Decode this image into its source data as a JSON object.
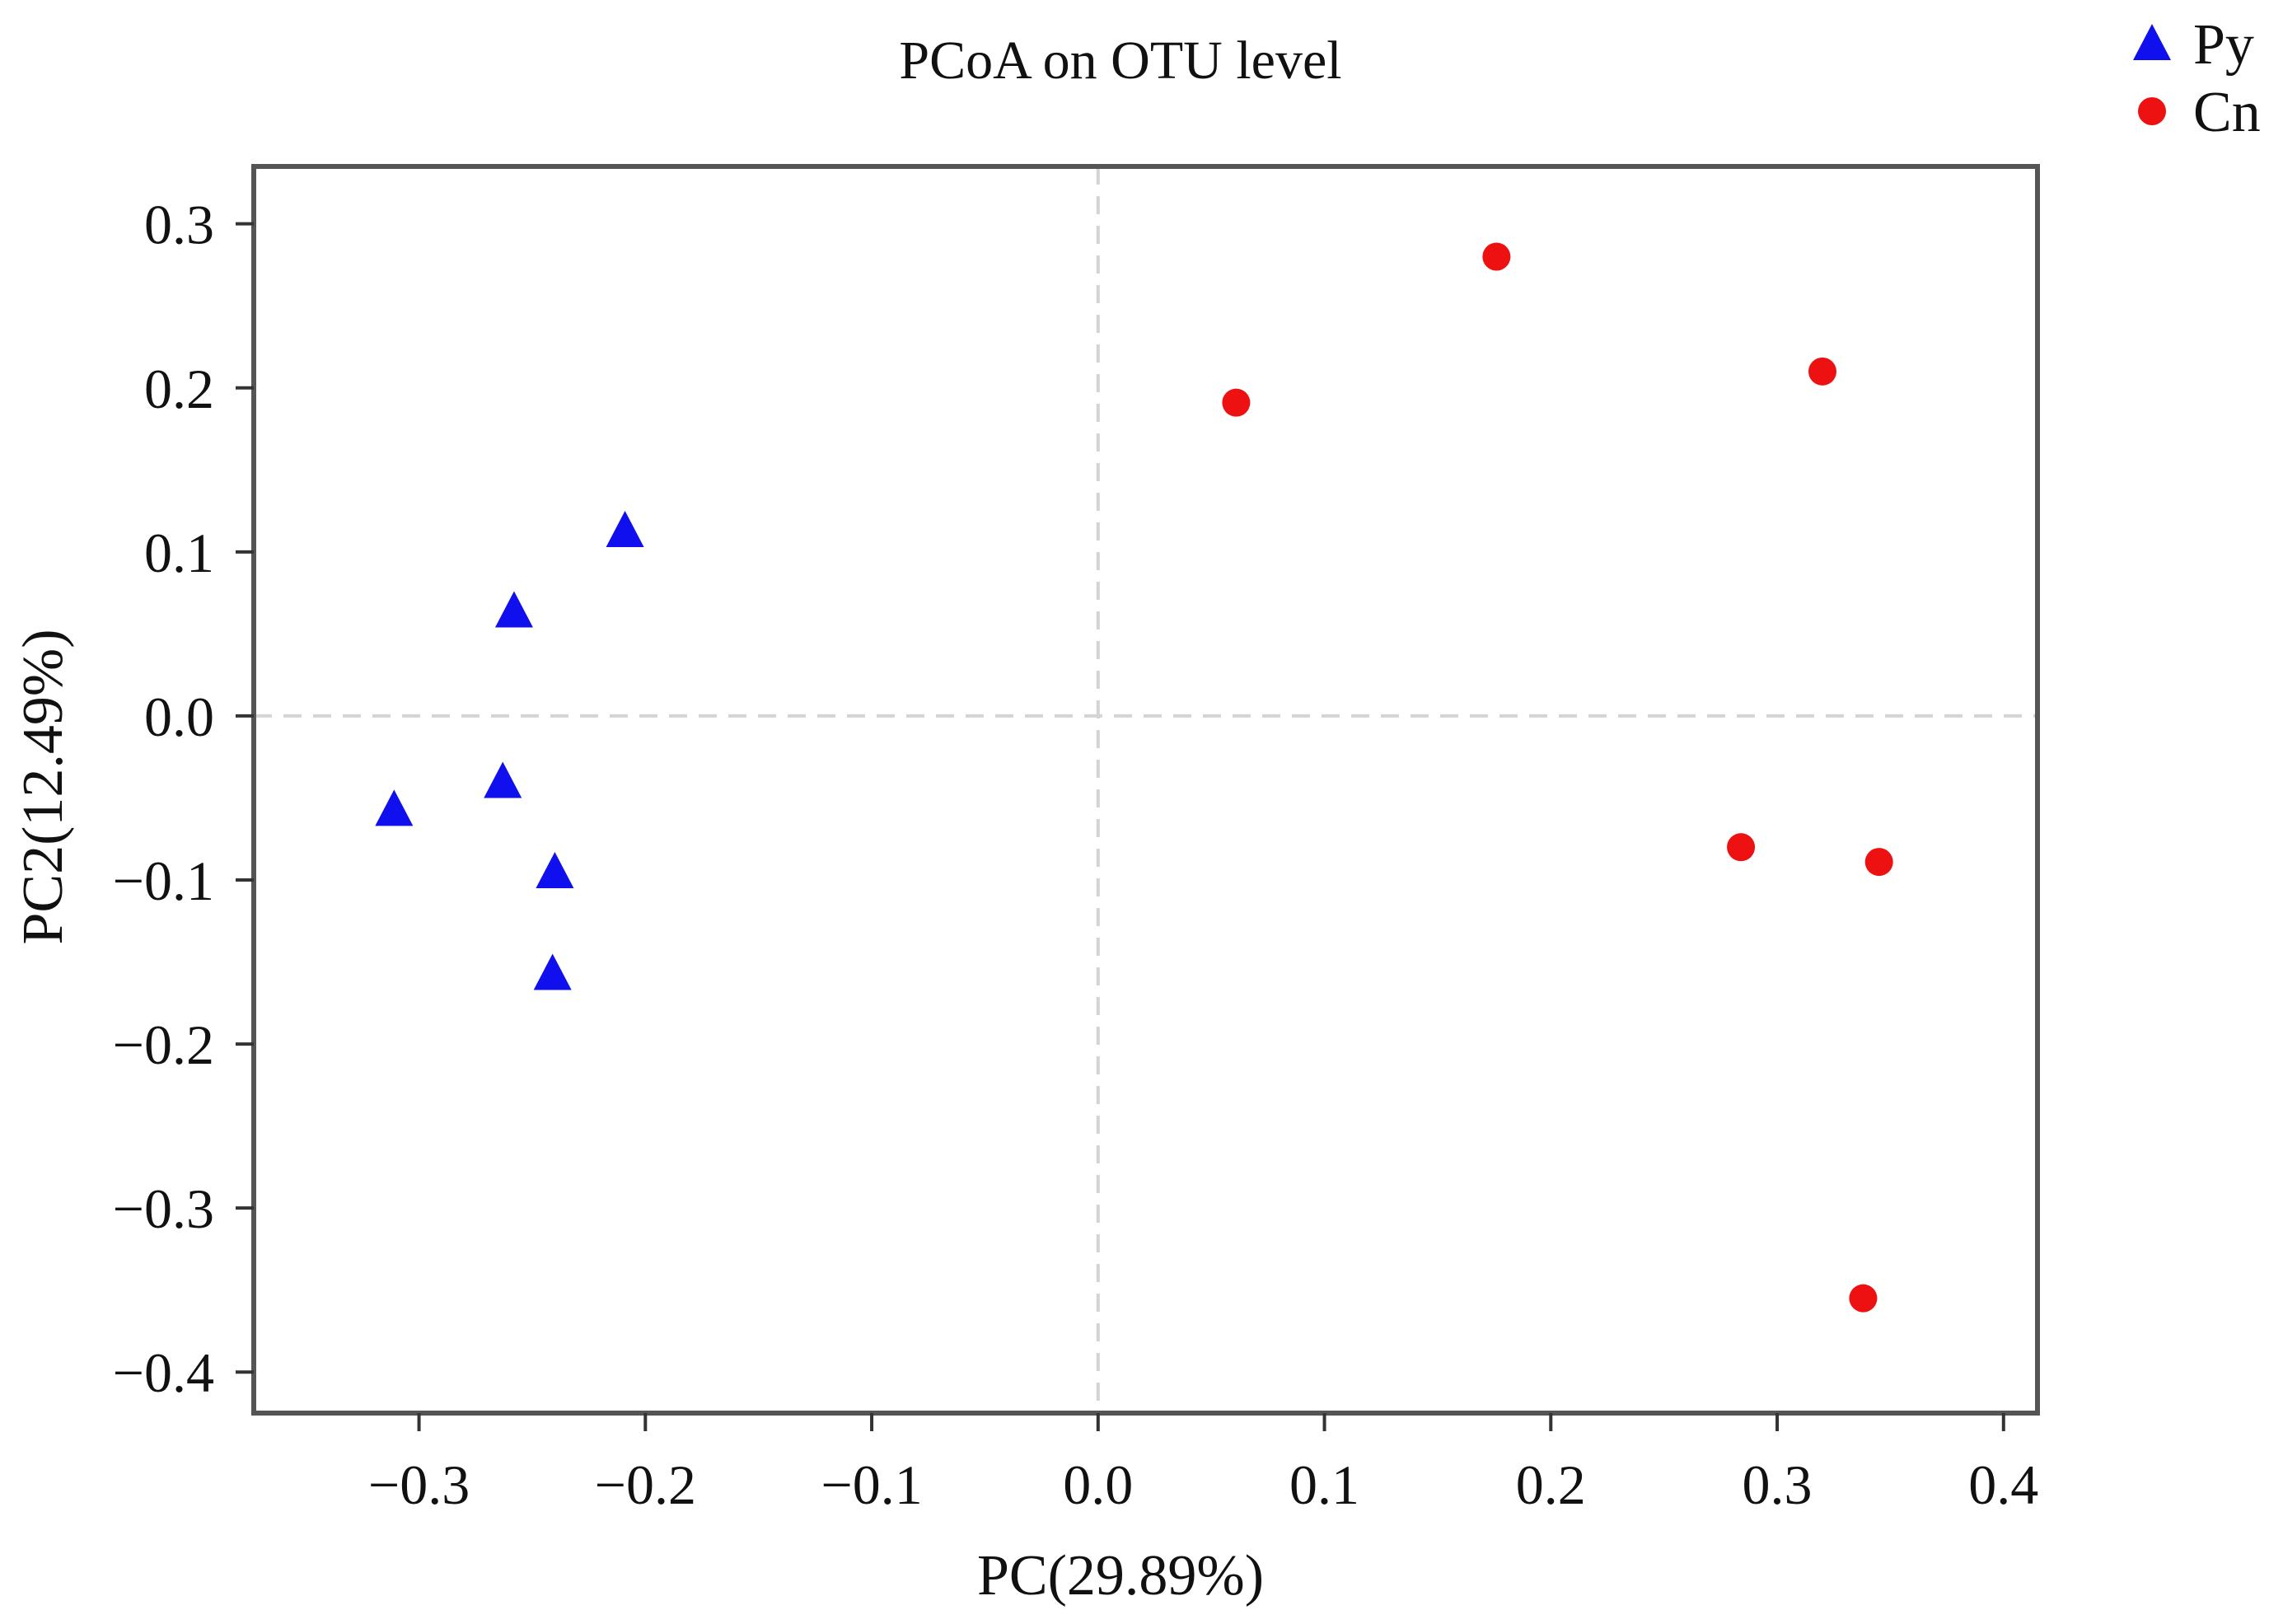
{
  "chart_data": {
    "type": "scatter",
    "title": "PCoA on OTU level",
    "xlabel": "PC(29.89%)",
    "ylabel": "PC2(12.49%)",
    "xlim": [
      -0.373,
      0.415
    ],
    "ylim": [
      -0.425,
      0.335
    ],
    "xticks": [
      -0.3,
      -0.2,
      -0.1,
      0.0,
      0.1,
      0.2,
      0.3,
      0.4
    ],
    "xtick_labels": [
      "−0.3",
      "−0.2",
      "−0.1",
      "0.0",
      "0.1",
      "0.2",
      "0.3",
      "0.4"
    ],
    "yticks": [
      0.3,
      0.2,
      0.1,
      0.0,
      -0.1,
      -0.2,
      -0.3,
      -0.4
    ],
    "ytick_labels": [
      "0.3",
      "0.2",
      "0.1",
      "0.0",
      "−0.1",
      "−0.2",
      "−0.3",
      "−0.4"
    ],
    "reference_lines": {
      "x": 0.0,
      "y": 0.0,
      "style": "dashed"
    },
    "legend_position": "top-right",
    "series": [
      {
        "name": "Py",
        "marker": "triangle",
        "color": "#1010ee",
        "points": [
          {
            "x": -0.209,
            "y": 0.113
          },
          {
            "x": -0.258,
            "y": 0.064
          },
          {
            "x": -0.263,
            "y": -0.04
          },
          {
            "x": -0.311,
            "y": -0.057
          },
          {
            "x": -0.24,
            "y": -0.095
          },
          {
            "x": -0.241,
            "y": -0.157
          }
        ]
      },
      {
        "name": "Cn",
        "marker": "circle",
        "color": "#ee1111",
        "points": [
          {
            "x": 0.176,
            "y": 0.28
          },
          {
            "x": 0.061,
            "y": 0.191
          },
          {
            "x": 0.32,
            "y": 0.21
          },
          {
            "x": 0.284,
            "y": -0.08
          },
          {
            "x": 0.345,
            "y": -0.089
          },
          {
            "x": 0.338,
            "y": -0.355
          }
        ]
      }
    ]
  }
}
